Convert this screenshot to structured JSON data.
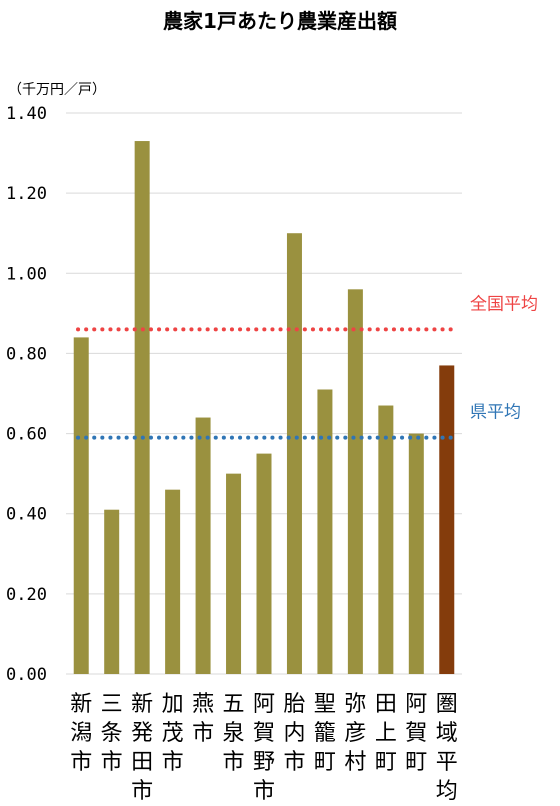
{
  "colors": {
    "bar": "#9a913f",
    "bar_highlight": "#843c0c",
    "grid": "#d9d9d9",
    "national_avg": "#ee4444",
    "prefecture_avg": "#2f75b5"
  },
  "chart_data": {
    "type": "bar",
    "title": "農家1戸あたり農業産出額",
    "ylabel": "（千万円／戸）",
    "xlabel": "",
    "ylim": [
      0,
      1.4
    ],
    "yticks": [
      "0.00",
      "0.20",
      "0.40",
      "0.60",
      "0.80",
      "1.00",
      "1.20",
      "1.40"
    ],
    "grid": true,
    "legend": "none",
    "categories": [
      "新潟市",
      "三条市",
      "新発田市",
      "加茂市",
      "燕市",
      "五泉市",
      "阿賀野市",
      "胎内市",
      "聖籠町",
      "弥彦村",
      "田上町",
      "阿賀町",
      "圏域平均"
    ],
    "values": [
      0.84,
      0.41,
      1.33,
      0.46,
      0.64,
      0.5,
      0.55,
      1.1,
      0.71,
      0.96,
      0.67,
      0.6,
      0.77
    ],
    "highlight_category": "圏域平均",
    "reference_lines": [
      {
        "label": "全国平均",
        "value": 0.86,
        "color": "#ee4444",
        "style": "dotted"
      },
      {
        "label": "県平均",
        "value": 0.59,
        "color": "#2f75b5",
        "style": "dotted"
      }
    ]
  }
}
